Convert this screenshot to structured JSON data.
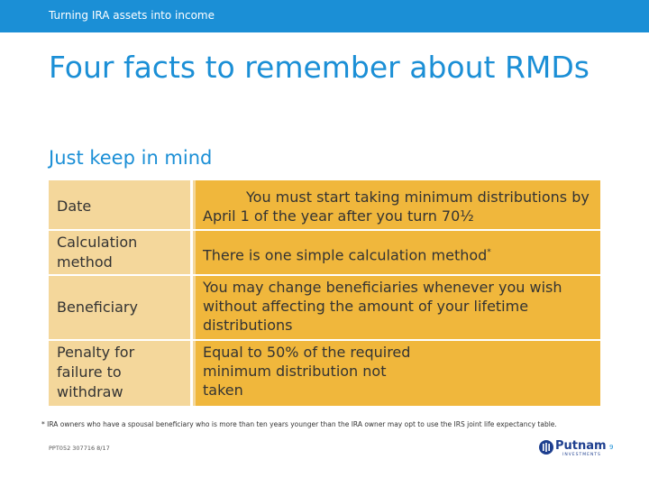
{
  "header": {
    "section": "Turning IRA assets into income"
  },
  "title": "Four facts to remember about RMDs",
  "subtitle": "Just keep in mind",
  "rows": [
    {
      "label": "Date",
      "value": "You must start taking minimum distributions by April 1 of the year after you turn 70½"
    },
    {
      "label": "Calculation method",
      "value": "There is one simple calculation method",
      "value_superscript": "*"
    },
    {
      "label": "Beneficiary",
      "value": "You may change beneficiaries whenever you wish without affecting the amount of your lifetime distributions"
    },
    {
      "label": "Penalty for failure to withdraw",
      "value": "Equal to 50% of the required minimum distribution not taken"
    }
  ],
  "footnote": "* IRA owners who have a spousal beneficiary who is more than ten years younger than the IRA owner may opt to use the IRS joint life expectancy table.",
  "footer": {
    "code": "PPT052 307716 8/17",
    "logo": "Putnam",
    "logo_sub": "INVESTMENTS",
    "page": "9"
  },
  "colors": {
    "accent": "#1b8fd6",
    "row_label": "#f4d79b",
    "row_value": "#f0b73c",
    "logo": "#1e3f8f"
  }
}
